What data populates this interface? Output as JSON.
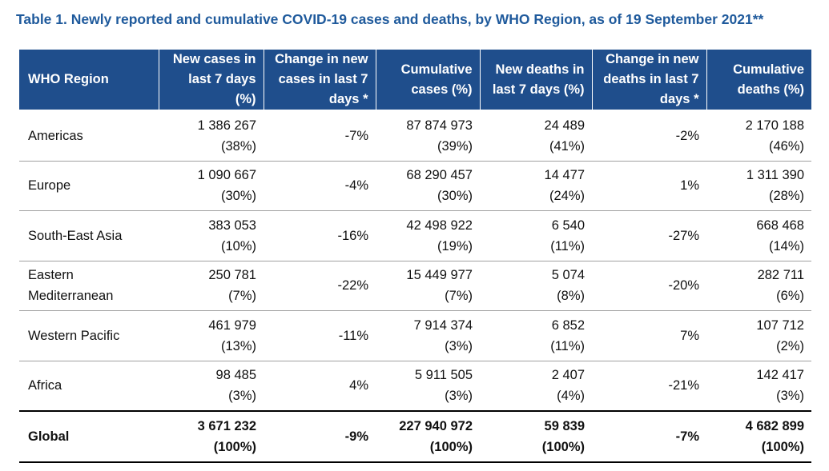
{
  "caption": "Table 1. Newly reported and cumulative COVID-19 cases and deaths, by WHO Region, as of 19 September 2021**",
  "headers": [
    "WHO Region",
    "New cases in last 7 days (%)",
    "Change in new cases in last 7 days *",
    "Cumulative cases (%)",
    "New deaths in last 7 days (%)",
    "Change in new deaths in last 7 days *",
    "Cumulative deaths (%)"
  ],
  "rows": [
    {
      "region": "Americas",
      "new_cases": "1 386 267",
      "new_cases_pct": "(38%)",
      "change_cases": "-7%",
      "cum_cases": "87 874 973",
      "cum_cases_pct": "(39%)",
      "new_deaths": "24 489",
      "new_deaths_pct": "(41%)",
      "change_deaths": "-2%",
      "cum_deaths": "2 170 188",
      "cum_deaths_pct": "(46%)"
    },
    {
      "region": "Europe",
      "new_cases": "1 090 667",
      "new_cases_pct": "(30%)",
      "change_cases": "-4%",
      "cum_cases": "68 290 457",
      "cum_cases_pct": "(30%)",
      "new_deaths": "14 477",
      "new_deaths_pct": "(24%)",
      "change_deaths": "1%",
      "cum_deaths": "1 311 390",
      "cum_deaths_pct": "(28%)"
    },
    {
      "region": "South-East Asia",
      "new_cases": "383 053",
      "new_cases_pct": "(10%)",
      "change_cases": "-16%",
      "cum_cases": "42 498 922",
      "cum_cases_pct": "(19%)",
      "new_deaths": "6 540",
      "new_deaths_pct": "(11%)",
      "change_deaths": "-27%",
      "cum_deaths": "668 468",
      "cum_deaths_pct": "(14%)"
    },
    {
      "region": "Eastern Mediterranean",
      "new_cases": "250 781",
      "new_cases_pct": "(7%)",
      "change_cases": "-22%",
      "cum_cases": "15 449 977",
      "cum_cases_pct": "(7%)",
      "new_deaths": "5 074",
      "new_deaths_pct": "(8%)",
      "change_deaths": "-20%",
      "cum_deaths": "282 711",
      "cum_deaths_pct": "(6%)"
    },
    {
      "region": "Western Pacific",
      "new_cases": "461 979",
      "new_cases_pct": "(13%)",
      "change_cases": "-11%",
      "cum_cases": "7 914 374",
      "cum_cases_pct": "(3%)",
      "new_deaths": "6 852",
      "new_deaths_pct": "(11%)",
      "change_deaths": "7%",
      "cum_deaths": "107 712",
      "cum_deaths_pct": "(2%)"
    },
    {
      "region": "Africa",
      "new_cases": "98 485",
      "new_cases_pct": "(3%)",
      "change_cases": "4%",
      "cum_cases": "5 911 505",
      "cum_cases_pct": "(3%)",
      "new_deaths": "2 407",
      "new_deaths_pct": "(4%)",
      "change_deaths": "-21%",
      "cum_deaths": "142 417",
      "cum_deaths_pct": "(3%)"
    }
  ],
  "global": {
    "region": "Global",
    "new_cases": "3 671 232",
    "new_cases_pct": "(100%)",
    "change_cases": "-9%",
    "cum_cases": "227 940 972",
    "cum_cases_pct": "(100%)",
    "new_deaths": "59 839",
    "new_deaths_pct": "(100%)",
    "change_deaths": "-7%",
    "cum_deaths": "4 682 899",
    "cum_deaths_pct": "(100%)"
  },
  "colors": {
    "title": "#1f5a9c",
    "header_bg": "#1f4e8c",
    "header_text": "#ffffff"
  }
}
